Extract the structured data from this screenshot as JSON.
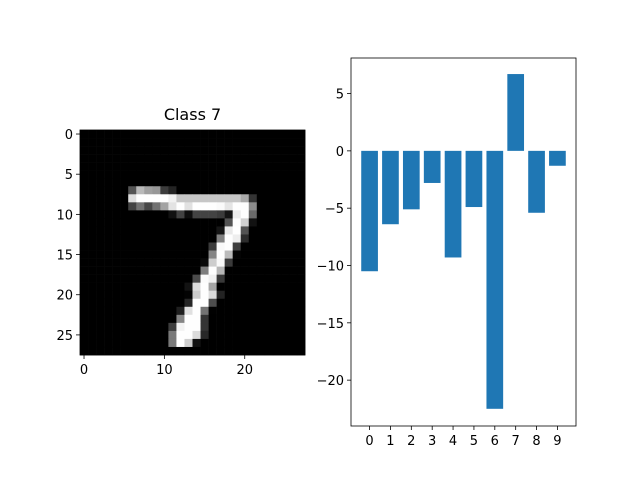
{
  "chart_data": [
    {
      "type": "image",
      "title": "Class 7",
      "cmap": "gray",
      "xlim": [
        -0.5,
        27.5
      ],
      "ylim": [
        27.5,
        -0.5
      ],
      "xticks": [
        0,
        10,
        20
      ],
      "yticks": [
        0,
        5,
        10,
        15,
        20,
        25
      ],
      "pixels": [
        [
          0,
          0,
          0,
          0,
          0,
          0,
          0,
          0,
          0,
          0,
          0,
          0,
          0,
          0,
          0,
          0,
          0,
          0,
          0,
          0,
          0,
          0,
          0,
          0,
          0,
          0,
          0,
          0
        ],
        [
          0,
          0,
          0,
          0,
          0,
          0,
          0,
          0,
          0,
          0,
          0,
          0,
          0,
          0,
          0,
          0,
          0,
          0,
          0,
          0,
          0,
          0,
          0,
          0,
          0,
          0,
          0,
          0
        ],
        [
          0,
          0,
          0,
          0,
          0,
          0,
          0,
          0,
          0,
          0,
          0,
          0,
          0,
          0,
          0,
          0,
          0,
          0,
          0,
          0,
          0,
          0,
          0,
          0,
          0,
          0,
          0,
          0
        ],
        [
          0,
          0,
          0,
          0,
          0,
          0,
          0,
          0,
          0,
          0,
          0,
          0,
          0,
          0,
          0,
          0,
          0,
          0,
          0,
          0,
          0,
          0,
          0,
          0,
          0,
          0,
          0,
          0
        ],
        [
          0,
          0,
          0,
          0,
          0,
          0,
          0,
          0,
          0,
          0,
          0,
          0,
          0,
          0,
          0,
          0,
          0,
          0,
          0,
          0,
          0,
          0,
          0,
          0,
          0,
          0,
          0,
          0
        ],
        [
          0,
          0,
          0,
          0,
          0,
          0,
          0,
          0,
          0,
          0,
          0,
          0,
          0,
          0,
          0,
          0,
          0,
          0,
          0,
          0,
          0,
          0,
          0,
          0,
          0,
          0,
          0,
          0
        ],
        [
          0,
          0,
          0,
          0,
          0,
          0,
          0,
          0,
          0,
          0,
          0,
          0,
          0,
          0,
          0,
          0,
          0,
          0,
          0,
          0,
          0,
          0,
          0,
          0,
          0,
          0,
          0,
          0
        ],
        [
          0,
          0,
          0,
          0,
          0,
          0,
          84,
          185,
          159,
          151,
          60,
          36,
          0,
          0,
          0,
          0,
          0,
          0,
          0,
          0,
          0,
          0,
          0,
          0,
          0,
          0,
          0,
          0
        ],
        [
          0,
          0,
          0,
          0,
          0,
          0,
          222,
          254,
          254,
          254,
          254,
          241,
          198,
          198,
          198,
          198,
          198,
          198,
          198,
          198,
          170,
          52,
          0,
          0,
          0,
          0,
          0,
          0
        ],
        [
          0,
          0,
          0,
          0,
          0,
          0,
          67,
          114,
          72,
          114,
          163,
          227,
          254,
          225,
          254,
          254,
          254,
          250,
          229,
          254,
          254,
          140,
          0,
          0,
          0,
          0,
          0,
          0
        ],
        [
          0,
          0,
          0,
          0,
          0,
          0,
          0,
          0,
          0,
          0,
          0,
          17,
          66,
          14,
          67,
          67,
          67,
          59,
          21,
          236,
          254,
          106,
          0,
          0,
          0,
          0,
          0,
          0
        ],
        [
          0,
          0,
          0,
          0,
          0,
          0,
          0,
          0,
          0,
          0,
          0,
          0,
          0,
          0,
          0,
          0,
          0,
          0,
          83,
          253,
          209,
          18,
          0,
          0,
          0,
          0,
          0,
          0
        ],
        [
          0,
          0,
          0,
          0,
          0,
          0,
          0,
          0,
          0,
          0,
          0,
          0,
          0,
          0,
          0,
          0,
          0,
          22,
          233,
          255,
          83,
          0,
          0,
          0,
          0,
          0,
          0,
          0
        ],
        [
          0,
          0,
          0,
          0,
          0,
          0,
          0,
          0,
          0,
          0,
          0,
          0,
          0,
          0,
          0,
          0,
          0,
          129,
          254,
          238,
          44,
          0,
          0,
          0,
          0,
          0,
          0,
          0
        ],
        [
          0,
          0,
          0,
          0,
          0,
          0,
          0,
          0,
          0,
          0,
          0,
          0,
          0,
          0,
          0,
          0,
          59,
          249,
          254,
          62,
          0,
          0,
          0,
          0,
          0,
          0,
          0,
          0
        ],
        [
          0,
          0,
          0,
          0,
          0,
          0,
          0,
          0,
          0,
          0,
          0,
          0,
          0,
          0,
          0,
          0,
          133,
          254,
          187,
          5,
          0,
          0,
          0,
          0,
          0,
          0,
          0,
          0
        ],
        [
          0,
          0,
          0,
          0,
          0,
          0,
          0,
          0,
          0,
          0,
          0,
          0,
          0,
          0,
          0,
          9,
          205,
          248,
          58,
          0,
          0,
          0,
          0,
          0,
          0,
          0,
          0,
          0
        ],
        [
          0,
          0,
          0,
          0,
          0,
          0,
          0,
          0,
          0,
          0,
          0,
          0,
          0,
          0,
          0,
          126,
          254,
          182,
          0,
          0,
          0,
          0,
          0,
          0,
          0,
          0,
          0,
          0
        ],
        [
          0,
          0,
          0,
          0,
          0,
          0,
          0,
          0,
          0,
          0,
          0,
          0,
          0,
          0,
          75,
          251,
          240,
          57,
          0,
          0,
          0,
          0,
          0,
          0,
          0,
          0,
          0,
          0
        ],
        [
          0,
          0,
          0,
          0,
          0,
          0,
          0,
          0,
          0,
          0,
          0,
          0,
          0,
          19,
          221,
          254,
          166,
          0,
          0,
          0,
          0,
          0,
          0,
          0,
          0,
          0,
          0,
          0
        ],
        [
          0,
          0,
          0,
          0,
          0,
          0,
          0,
          0,
          0,
          0,
          0,
          0,
          0,
          3,
          203,
          254,
          219,
          35,
          0,
          0,
          0,
          0,
          0,
          0,
          0,
          0,
          0,
          0
        ],
        [
          0,
          0,
          0,
          0,
          0,
          0,
          0,
          0,
          0,
          0,
          0,
          0,
          0,
          38,
          254,
          254,
          77,
          0,
          0,
          0,
          0,
          0,
          0,
          0,
          0,
          0,
          0,
          0
        ],
        [
          0,
          0,
          0,
          0,
          0,
          0,
          0,
          0,
          0,
          0,
          0,
          0,
          31,
          224,
          254,
          115,
          1,
          0,
          0,
          0,
          0,
          0,
          0,
          0,
          0,
          0,
          0,
          0
        ],
        [
          0,
          0,
          0,
          0,
          0,
          0,
          0,
          0,
          0,
          0,
          0,
          0,
          133,
          254,
          254,
          52,
          0,
          0,
          0,
          0,
          0,
          0,
          0,
          0,
          0,
          0,
          0,
          0
        ],
        [
          0,
          0,
          0,
          0,
          0,
          0,
          0,
          0,
          0,
          0,
          0,
          61,
          242,
          254,
          254,
          52,
          0,
          0,
          0,
          0,
          0,
          0,
          0,
          0,
          0,
          0,
          0,
          0
        ],
        [
          0,
          0,
          0,
          0,
          0,
          0,
          0,
          0,
          0,
          0,
          0,
          121,
          254,
          254,
          219,
          40,
          0,
          0,
          0,
          0,
          0,
          0,
          0,
          0,
          0,
          0,
          0,
          0
        ],
        [
          0,
          0,
          0,
          0,
          0,
          0,
          0,
          0,
          0,
          0,
          0,
          121,
          254,
          207,
          18,
          0,
          0,
          0,
          0,
          0,
          0,
          0,
          0,
          0,
          0,
          0,
          0,
          0
        ],
        [
          0,
          0,
          0,
          0,
          0,
          0,
          0,
          0,
          0,
          0,
          0,
          0,
          0,
          0,
          0,
          0,
          0,
          0,
          0,
          0,
          0,
          0,
          0,
          0,
          0,
          0,
          0,
          0
        ]
      ]
    },
    {
      "type": "bar",
      "color": "#1f77b4",
      "x": [
        0,
        1,
        2,
        3,
        4,
        5,
        6,
        7,
        8,
        9
      ],
      "values": [
        -10.5,
        -6.4,
        -5.1,
        -2.8,
        -9.3,
        -4.9,
        -22.5,
        6.7,
        -5.4,
        -1.3
      ],
      "xlim": [
        -0.89,
        9.89
      ],
      "ylim": [
        -24.0,
        8.1
      ],
      "xticks": [
        0,
        1,
        2,
        3,
        4,
        5,
        6,
        7,
        8,
        9
      ],
      "yticks": [
        5,
        0,
        {
          "value": -5,
          "label": "−5"
        },
        {
          "value": -10,
          "label": "−10"
        },
        {
          "value": -15,
          "label": "−15"
        },
        {
          "value": -20,
          "label": "−20"
        }
      ]
    }
  ]
}
